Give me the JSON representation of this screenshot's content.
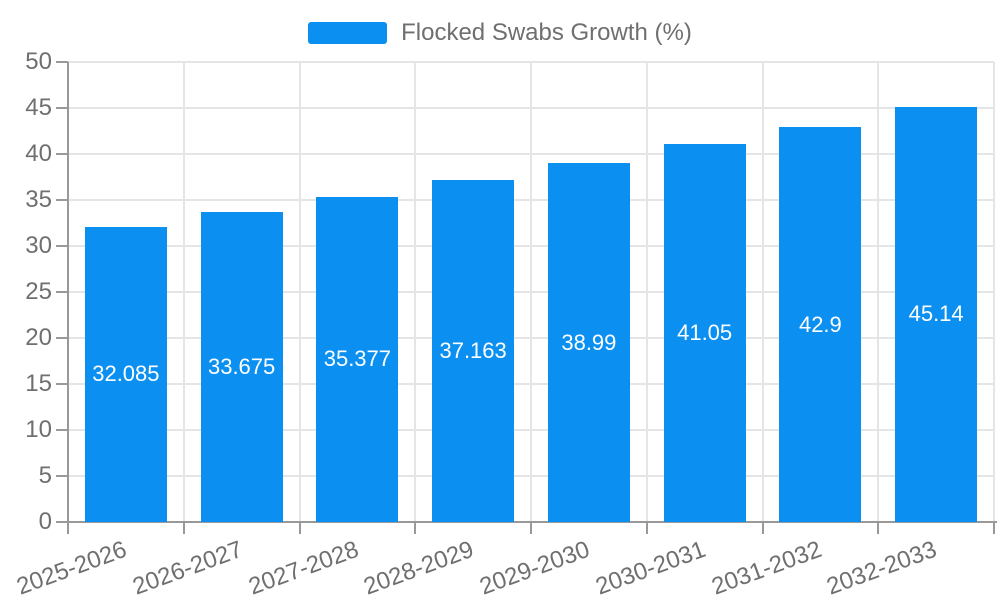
{
  "chart_data": {
    "type": "bar",
    "title": "Flocked Swabs Growth (%)",
    "series_name": "Flocked Swabs Growth (%)",
    "categories": [
      "2025-2026",
      "2026-2027",
      "2027-2028",
      "2028-2029",
      "2029-2030",
      "2030-2031",
      "2031-2032",
      "2032-2033"
    ],
    "values": [
      32.085,
      33.675,
      35.377,
      37.163,
      38.99,
      41.05,
      42.9,
      45.14
    ],
    "xlabel": "",
    "ylabel": "",
    "ylim": [
      0,
      50
    ],
    "yticks": [
      0,
      5,
      10,
      15,
      20,
      25,
      30,
      35,
      40,
      45,
      50
    ],
    "grid": true,
    "legend_position": "top-center",
    "bar_label_position": "inside-center",
    "x_label_rotation_deg": -20,
    "colors": {
      "bar": "#0b90f2",
      "bar_label": "#ffffff",
      "axis_line": "#999999",
      "grid_line": "#e5e5e5",
      "tick_label": "#6f6f6f",
      "legend_text": "#6f6f6f",
      "background": "#ffffff"
    }
  }
}
